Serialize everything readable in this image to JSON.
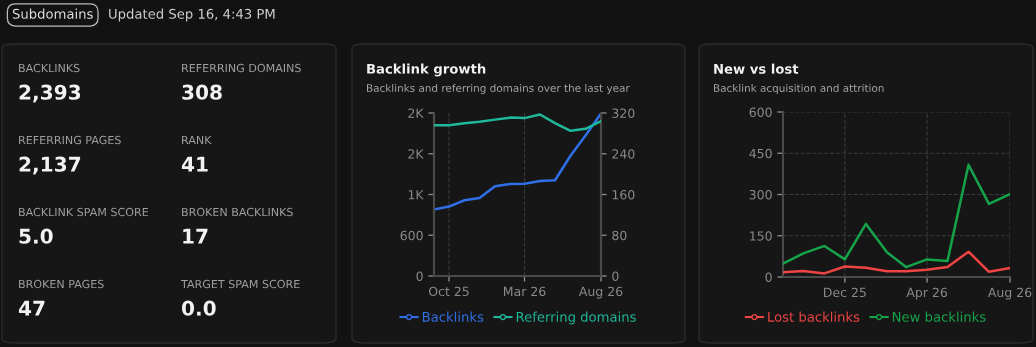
{
  "chart_data": [
    {
      "type": "other",
      "annotations": [
        "Subdomains",
        "Updated Sep 16, 4:43 PM",
        "BACKLINKS",
        "2,393",
        "REFERRING DOMAINS",
        "308",
        "REFERRING PAGES",
        "2,137",
        "RANK",
        "41",
        "BACKLINK SPAM SCORE",
        "5.0",
        "BROKEN BACKLINKS",
        "17",
        "BROKEN PAGES",
        "47",
        "TARGET SPAM SCORE",
        "0.0"
      ]
    },
    {
      "type": "line",
      "title": "Backlink growth",
      "subtitle": "Backlinks and referring domains over the last year",
      "x": [
        "2025-09-01",
        "2025-10-01",
        "2025-11-01",
        "2025-12-01",
        "2026-01-01",
        "2026-02-01",
        "2026-03-01",
        "2026-04-01",
        "2026-05-01",
        "2026-06-01",
        "2026-07-01",
        "2026-08-01"
      ],
      "series": [
        {
          "name": "Backlinks",
          "color": "#2f6fe8",
          "values": [
            978,
            1022,
            1115,
            1147,
            1320,
            1355,
            1359,
            1398,
            1410,
            1770,
            2070,
            2393
          ]
        },
        {
          "name": "Referring domains",
          "color": "#1fb89a",
          "axis": "y2",
          "values": [
            296,
            296,
            300,
            303,
            307,
            311,
            310,
            317,
            300,
            285,
            289,
            304
          ]
        }
      ],
      "xlim": [
        "2025-09-01",
        "2026-08-01"
      ],
      "xticks": [
        {
          "value": "2025-10-01",
          "label": "Oct 25"
        },
        {
          "value": "2026-03-01",
          "label": "Mar 26"
        },
        {
          "value": "2026-08-01",
          "label": "Aug 26"
        }
      ],
      "ylim": [
        0,
        2400
      ],
      "yticks": [
        0,
        600,
        {
          "value": 1200,
          "label": "1K"
        },
        {
          "value": 1800,
          "label": "2K"
        },
        {
          "value": 2400,
          "label": "2K"
        }
      ],
      "y2lim": [
        0,
        320
      ],
      "y2ticks": [
        0,
        80,
        160,
        240,
        320
      ],
      "grid": "x",
      "legend": "bottom",
      "marker": "none",
      "line_style": "solid"
    },
    {
      "type": "line",
      "title": "New vs lost",
      "subtitle": "Backlink acquisition and attrition",
      "x": [
        "2025-09-01",
        "2025-10-01",
        "2025-11-01",
        "2025-12-01",
        "2026-01-01",
        "2026-02-01",
        "2026-03-01",
        "2026-04-01",
        "2026-05-01",
        "2026-06-01",
        "2026-07-01",
        "2026-08-01"
      ],
      "series": [
        {
          "name": "Lost backlinks",
          "color": "#ef4444",
          "values": [
            17,
            22,
            13,
            38,
            34,
            21,
            21,
            26,
            36,
            92,
            19,
            33
          ]
        },
        {
          "name": "New backlinks",
          "color": "#16a34a",
          "values": [
            49,
            86,
            113,
            64,
            193,
            90,
            36,
            64,
            58,
            408,
            266,
            301
          ]
        }
      ],
      "xlim": [
        "2025-09-01",
        "2026-08-01"
      ],
      "xticks": [
        {
          "value": "2025-12-01",
          "label": "Dec 25"
        },
        {
          "value": "2026-04-01",
          "label": "Apr 26"
        },
        {
          "value": "2026-08-01",
          "label": "Aug 26"
        }
      ],
      "ylim": [
        0,
        600
      ],
      "yticks": [
        0,
        150,
        300,
        450,
        600
      ],
      "grid": true,
      "legend": "bottom",
      "marker": "none",
      "line_style": "solid"
    }
  ]
}
